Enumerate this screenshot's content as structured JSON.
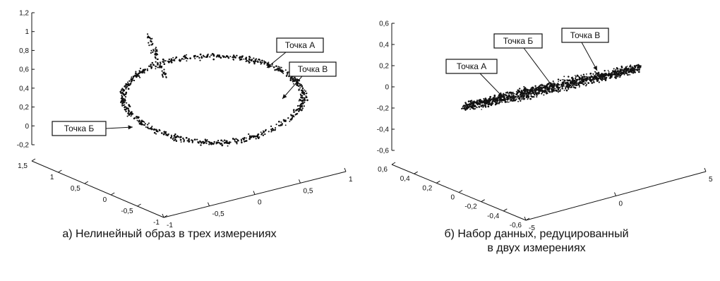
{
  "chart_data": [
    {
      "type": "scatter",
      "projection": "3d",
      "caption": "а) Нелинейный образ в трех измерениях",
      "z_ticks": [
        "1,2",
        "1",
        "0,8",
        "0,6",
        "0,4",
        "0,2",
        "0",
        "-0,2"
      ],
      "z_range": [
        -0.2,
        1.2
      ],
      "left_axis_ticks": [
        "1,5",
        "1",
        "0,5",
        "0",
        "-0,5",
        "-1"
      ],
      "right_axis_ticks": [
        "-1",
        "-0,5",
        "0",
        "0,5",
        "1"
      ],
      "annotations": [
        {
          "label": "Точка А",
          "target": [
            0.45,
            0.75,
            0.65
          ]
        },
        {
          "label": "Точка В",
          "target": [
            0.85,
            0.2,
            0.35
          ]
        },
        {
          "label": "Точка Б",
          "target": [
            -0.8,
            -0.3,
            0.05
          ]
        }
      ],
      "points_description": "~700 points on a twisted closed loop (ring dipping and rising), z from about -0.1 to 0.9"
    },
    {
      "type": "scatter",
      "projection": "3d",
      "caption_line1": "б) Набор данных, редуцированный",
      "caption_line2": "в двух измерениях",
      "z_ticks": [
        "0,6",
        "0,4",
        "0,2",
        "0",
        "-0,2",
        "-0,4",
        "-0,6"
      ],
      "z_range": [
        -0.6,
        0.6
      ],
      "left_axis_ticks": [
        "0,6",
        "0,4",
        "0,2",
        "0",
        "-0,2",
        "-0,4",
        "-0,6"
      ],
      "right_axis_ticks": [
        "-5",
        "0",
        "5"
      ],
      "annotations": [
        {
          "label": "Точка А",
          "target": [
            -2.5,
            0.05,
            -0.15
          ]
        },
        {
          "label": "Точка Б",
          "target": [
            0.5,
            0.1,
            0.0
          ]
        },
        {
          "label": "Точка В",
          "target": [
            2.8,
            0.1,
            0.15
          ]
        }
      ],
      "points_description": "dense elongated band of points rising from left (-0.3) to right (+0.15)"
    }
  ]
}
